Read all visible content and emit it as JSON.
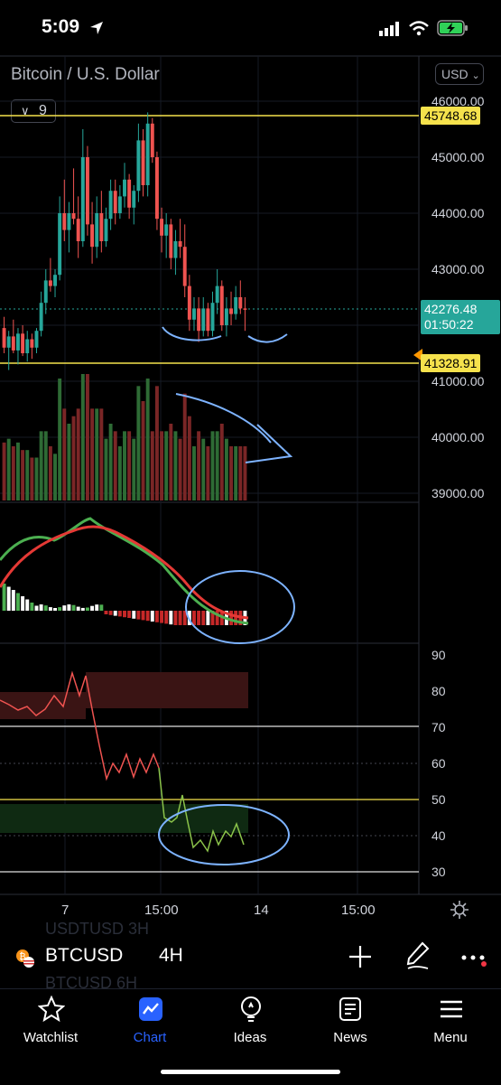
{
  "status_bar": {
    "time": "5:09"
  },
  "chart": {
    "title": "Bitcoin / U.S. Dollar",
    "currency": "USD",
    "indicator_count": "9",
    "price_axis": [
      "46000.00",
      "45000.00",
      "44000.00",
      "43000.00",
      "41000.00",
      "40000.00",
      "39000.00"
    ],
    "high_tag": "45748.68",
    "last_price": "42276.48",
    "countdown": "01:50:22",
    "low_tag": "41328.91",
    "rsi_axis": [
      "90",
      "80",
      "70",
      "60",
      "50",
      "40",
      "30"
    ],
    "x_axis": [
      "7",
      "15:00",
      "14",
      "15:00"
    ],
    "candles": [
      {
        "o": 41950,
        "h": 42150,
        "l": 41500,
        "c": 41600
      },
      {
        "o": 41600,
        "h": 41900,
        "l": 41200,
        "c": 41800
      },
      {
        "o": 41800,
        "h": 42100,
        "l": 41500,
        "c": 41550
      },
      {
        "o": 41550,
        "h": 41950,
        "l": 41300,
        "c": 41850
      },
      {
        "o": 41850,
        "h": 42000,
        "l": 41450,
        "c": 41500
      },
      {
        "o": 41500,
        "h": 41900,
        "l": 41350,
        "c": 41750
      },
      {
        "o": 41750,
        "h": 41850,
        "l": 41400,
        "c": 41600
      },
      {
        "o": 41600,
        "h": 41950,
        "l": 41500,
        "c": 41900
      },
      {
        "o": 41900,
        "h": 42600,
        "l": 41800,
        "c": 42400
      },
      {
        "o": 42400,
        "h": 43000,
        "l": 42200,
        "c": 42800
      },
      {
        "o": 42800,
        "h": 43200,
        "l": 42600,
        "c": 42700
      },
      {
        "o": 42700,
        "h": 43000,
        "l": 42500,
        "c": 42900
      },
      {
        "o": 42900,
        "h": 44300,
        "l": 42800,
        "c": 44000
      },
      {
        "o": 44000,
        "h": 44600,
        "l": 43500,
        "c": 43700
      },
      {
        "o": 43700,
        "h": 44200,
        "l": 43300,
        "c": 44000
      },
      {
        "o": 44000,
        "h": 44800,
        "l": 43800,
        "c": 43900
      },
      {
        "o": 43900,
        "h": 44300,
        "l": 43200,
        "c": 43500
      },
      {
        "o": 43500,
        "h": 45500,
        "l": 43400,
        "c": 45000
      },
      {
        "o": 45000,
        "h": 45200,
        "l": 43600,
        "c": 43800
      },
      {
        "o": 43800,
        "h": 44200,
        "l": 43100,
        "c": 43400
      },
      {
        "o": 43400,
        "h": 44300,
        "l": 43200,
        "c": 44000
      },
      {
        "o": 44000,
        "h": 44400,
        "l": 43300,
        "c": 43500
      },
      {
        "o": 43500,
        "h": 44100,
        "l": 43400,
        "c": 43900
      },
      {
        "o": 43900,
        "h": 44600,
        "l": 43700,
        "c": 44400
      },
      {
        "o": 44400,
        "h": 44600,
        "l": 43800,
        "c": 44000
      },
      {
        "o": 44000,
        "h": 44500,
        "l": 43900,
        "c": 44300
      },
      {
        "o": 44300,
        "h": 44900,
        "l": 44100,
        "c": 44600
      },
      {
        "o": 44600,
        "h": 44700,
        "l": 43900,
        "c": 44100
      },
      {
        "o": 44100,
        "h": 44500,
        "l": 43800,
        "c": 44400
      },
      {
        "o": 44400,
        "h": 45600,
        "l": 44200,
        "c": 45300
      },
      {
        "o": 45300,
        "h": 45500,
        "l": 44300,
        "c": 44500
      },
      {
        "o": 44500,
        "h": 45800,
        "l": 44300,
        "c": 45600
      },
      {
        "o": 45600,
        "h": 45700,
        "l": 44900,
        "c": 45000
      },
      {
        "o": 45000,
        "h": 45100,
        "l": 43700,
        "c": 43900
      },
      {
        "o": 43900,
        "h": 44100,
        "l": 43300,
        "c": 43600
      },
      {
        "o": 43600,
        "h": 44000,
        "l": 43200,
        "c": 43800
      },
      {
        "o": 43800,
        "h": 43900,
        "l": 43000,
        "c": 43200
      },
      {
        "o": 43200,
        "h": 43700,
        "l": 42900,
        "c": 43500
      },
      {
        "o": 43500,
        "h": 43900,
        "l": 43200,
        "c": 43400
      },
      {
        "o": 43400,
        "h": 43800,
        "l": 42500,
        "c": 42700
      },
      {
        "o": 42700,
        "h": 42900,
        "l": 41900,
        "c": 42100
      },
      {
        "o": 42100,
        "h": 42500,
        "l": 41900,
        "c": 42300
      },
      {
        "o": 42300,
        "h": 42500,
        "l": 41700,
        "c": 41900
      },
      {
        "o": 41900,
        "h": 42500,
        "l": 41800,
        "c": 42300
      },
      {
        "o": 42300,
        "h": 42400,
        "l": 41800,
        "c": 41900
      },
      {
        "o": 41900,
        "h": 42600,
        "l": 41800,
        "c": 42400
      },
      {
        "o": 42400,
        "h": 43000,
        "l": 42200,
        "c": 42700
      },
      {
        "o": 42700,
        "h": 42800,
        "l": 41900,
        "c": 42000
      },
      {
        "o": 42000,
        "h": 42500,
        "l": 41800,
        "c": 42300
      },
      {
        "o": 42300,
        "h": 42600,
        "l": 42000,
        "c": 42200
      },
      {
        "o": 42200,
        "h": 42700,
        "l": 42100,
        "c": 42500
      },
      {
        "o": 42500,
        "h": 42800,
        "l": 42200,
        "c": 42300
      },
      {
        "o": 42300,
        "h": 42500,
        "l": 41900,
        "c": 42276
      }
    ]
  },
  "bottom_bar": {
    "ghost_prev": "USDTUSD   3H",
    "ticker": "BTCUSD",
    "interval": "4H",
    "ghost_next": "BTCUSD    6H"
  },
  "tabs": [
    {
      "label": "Watchlist"
    },
    {
      "label": "Chart"
    },
    {
      "label": "Ideas"
    },
    {
      "label": "News"
    },
    {
      "label": "Menu"
    }
  ],
  "colors": {
    "up": "#26a69a",
    "down": "#ef5350",
    "accent": "#2962ff",
    "level": "#f6e24c",
    "annotation": "#7db3ff"
  }
}
